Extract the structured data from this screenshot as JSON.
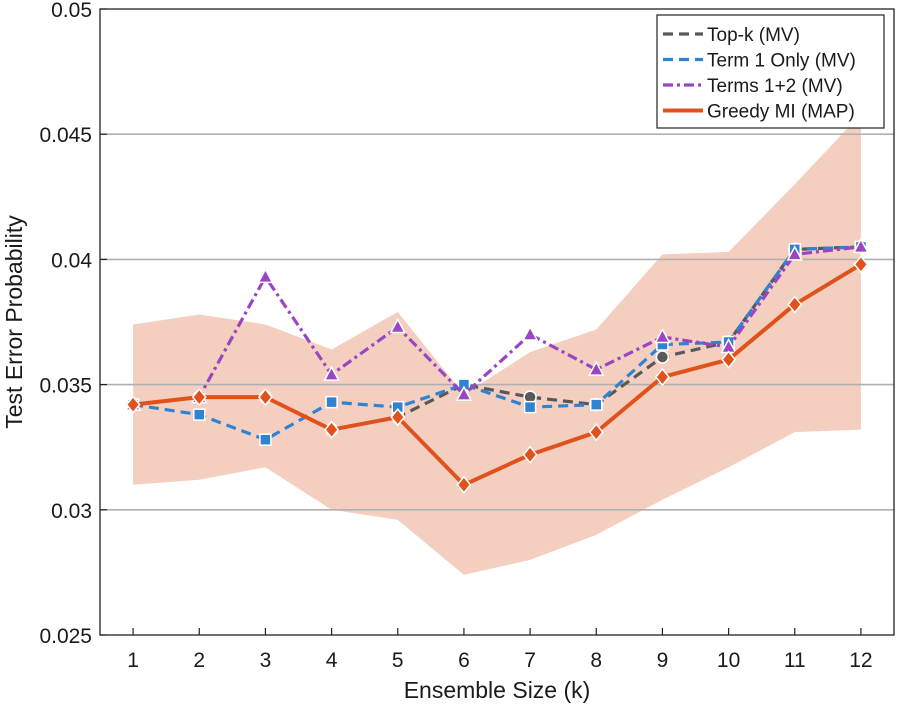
{
  "chart_data": {
    "type": "line",
    "title": "",
    "xlabel": "Ensemble Size (k)",
    "ylabel": "Test Error Probability",
    "x": [
      1,
      2,
      3,
      4,
      5,
      6,
      7,
      8,
      9,
      10,
      11,
      12
    ],
    "xlim": [
      0.5,
      12.5
    ],
    "ylim": [
      0.025,
      0.05
    ],
    "xticks": [
      1,
      2,
      3,
      4,
      5,
      6,
      7,
      8,
      9,
      10,
      11,
      12
    ],
    "yticks": [
      0.025,
      0.03,
      0.035,
      0.04,
      0.045,
      0.05
    ],
    "ytick_labels": [
      "0.025",
      "0.03",
      "0.035",
      "0.04",
      "0.045",
      "0.05"
    ],
    "grid": "horizontal",
    "legend_position": "top-right",
    "band": {
      "name": "Greedy MI range",
      "color": "#f4cfc0",
      "lower": [
        0.031,
        0.0312,
        0.0317,
        0.03,
        0.0296,
        0.0274,
        0.028,
        0.029,
        0.0304,
        0.0317,
        0.0331,
        0.0332
      ],
      "upper": [
        0.0374,
        0.0378,
        0.0374,
        0.0364,
        0.0379,
        0.0346,
        0.0363,
        0.0372,
        0.0402,
        0.0403,
        0.043,
        0.0458
      ]
    },
    "series": [
      {
        "name": "Top-k (MV)",
        "color": "#595959",
        "dash": "10,6",
        "marker": "circle",
        "values": [
          0.0342,
          0.0345,
          0.0345,
          0.0332,
          0.0337,
          0.035,
          0.0345,
          0.0342,
          0.0361,
          0.0367,
          0.0404,
          0.0405
        ]
      },
      {
        "name": "Term 1 Only (MV)",
        "color": "#2f83d0",
        "dash": "10,6",
        "marker": "square",
        "values": [
          0.0342,
          0.0338,
          0.0328,
          0.0343,
          0.0341,
          0.035,
          0.0341,
          0.0342,
          0.0366,
          0.0367,
          0.0404,
          0.0405
        ]
      },
      {
        "name": "Terms 1+2 (MV)",
        "color": "#9a45c2",
        "dash": "10,4,3,4",
        "marker": "triangle",
        "values": [
          0.0342,
          0.0345,
          0.0393,
          0.0354,
          0.0373,
          0.0346,
          0.037,
          0.0356,
          0.0369,
          0.0365,
          0.0402,
          0.0405
        ]
      },
      {
        "name": "Greedy MI (MAP)",
        "color": "#e0521c",
        "dash": "",
        "marker": "diamond",
        "values": [
          0.0342,
          0.0345,
          0.0345,
          0.0332,
          0.0337,
          0.031,
          0.0322,
          0.0331,
          0.0353,
          0.036,
          0.0382,
          0.0398
        ]
      }
    ]
  }
}
